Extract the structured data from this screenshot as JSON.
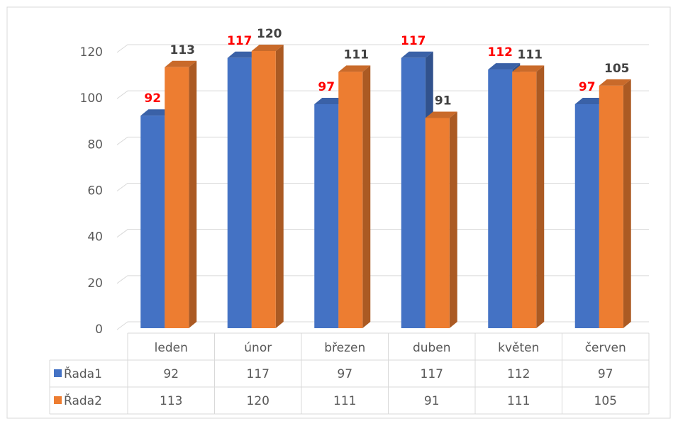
{
  "chart_data": {
    "type": "bar3d",
    "categories": [
      "leden",
      "únor",
      "březen",
      "duben",
      "květen",
      "červen"
    ],
    "series": [
      {
        "name": "Řada1",
        "color": "#4472c4",
        "label_color": "#ff0000",
        "values": [
          92,
          117,
          97,
          117,
          112,
          97
        ]
      },
      {
        "name": "Řada2",
        "color": "#ed7d31",
        "label_color": "#404040",
        "values": [
          113,
          120,
          111,
          91,
          111,
          105
        ]
      }
    ],
    "ylim": [
      0,
      120
    ],
    "yticks": [
      0,
      20,
      40,
      60,
      80,
      100,
      120
    ],
    "grid": true,
    "data_table": true
  }
}
